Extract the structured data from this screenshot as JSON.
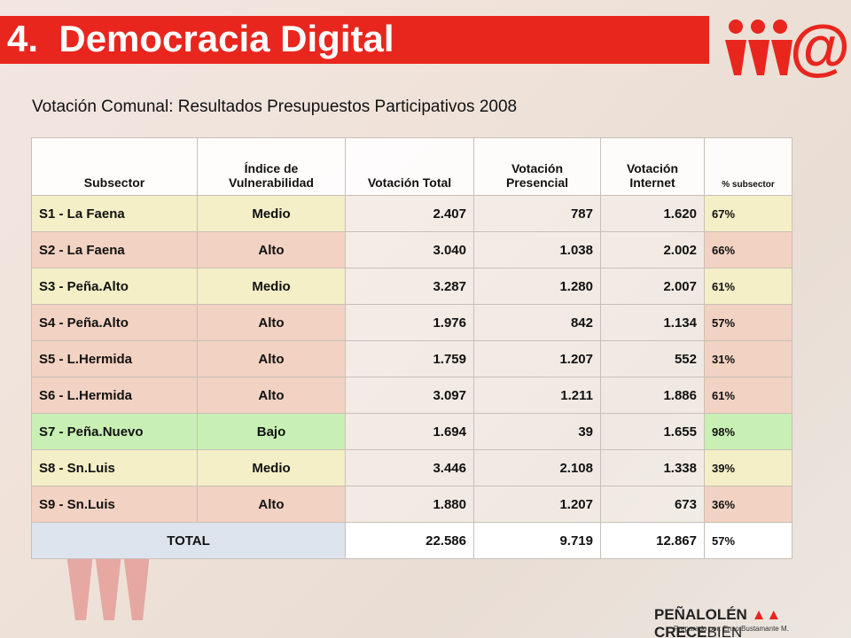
{
  "header": {
    "title": "4.  Democracia Digital",
    "subtitle": "Votación Comunal: Resultados Presupuestos Participativos 2008"
  },
  "table": {
    "columns": [
      "Subsector",
      "Índice de Vulnerabilidad",
      "Votación Total",
      "Votación Presencial",
      "Votación Internet",
      "% subsector"
    ],
    "rows": [
      [
        "S1 - La Faena",
        "Medio",
        "2.407",
        "787",
        "1.620",
        "67%"
      ],
      [
        "S2 - La Faena",
        "Alto",
        "3.040",
        "1.038",
        "2.002",
        "66%"
      ],
      [
        "S3 - Peña.Alto",
        "Medio",
        "3.287",
        "1.280",
        "2.007",
        "61%"
      ],
      [
        "S4 - Peña.Alto",
        "Alto",
        "1.976",
        "842",
        "1.134",
        "57%"
      ],
      [
        "S5 - L.Hermida",
        "Alto",
        "1.759",
        "1.207",
        "552",
        "31%"
      ],
      [
        "S6 - L.Hermida",
        "Alto",
        "3.097",
        "1.211",
        "1.886",
        "61%"
      ],
      [
        "S7 - Peña.Nuevo",
        "Bajo",
        "1.694",
        "39",
        "1.655",
        "98%"
      ],
      [
        "S8 - Sn.Luis",
        "Medio",
        "3.446",
        "2.108",
        "1.338",
        "39%"
      ],
      [
        "S9 - Sn.Luis",
        "Alto",
        "1.880",
        "1.207",
        "673",
        "36%"
      ]
    ],
    "total": [
      "TOTAL",
      "22.586",
      "9.719",
      "12.867",
      "57%"
    ]
  },
  "footer": {
    "brand_left": "PEÑALOLÉN",
    "brand_mid": "CRECE",
    "brand_right": "BIEN",
    "credit": "Preparado  por:  Enzo Bustamante  M."
  }
}
